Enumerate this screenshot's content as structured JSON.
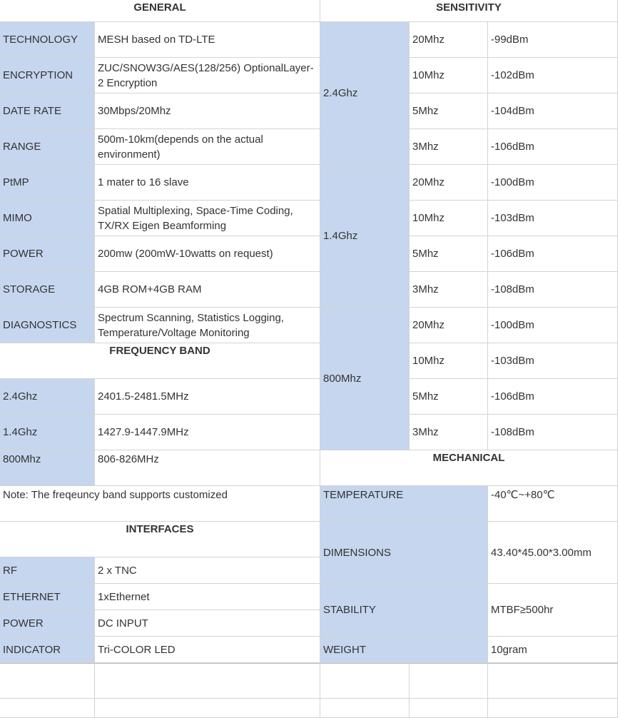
{
  "general": {
    "heading": "GENERAL",
    "rows": [
      {
        "label": "TECHNOLOGY",
        "value": "MESH based on TD-LTE"
      },
      {
        "label": "ENCRYPTION",
        "value": "ZUC/SNOW3G/AES(128/256) OptionalLayer-2 Encryption"
      },
      {
        "label": "DATE RATE",
        "value": "30Mbps/20Mhz"
      },
      {
        "label": "RANGE",
        "value": "500m-10km(depends on the actual environment)"
      },
      {
        "label": "PtMP",
        "value": "1 mater to 16 slave"
      },
      {
        "label": "MIMO",
        "value": "Spatial Multiplexing, Space-Time Coding, TX/RX Eigen Beamforming"
      },
      {
        "label": "POWER",
        "value": "200mw (200mW-10watts on request)"
      },
      {
        "label": "STORAGE",
        "value": "4GB ROM+4GB RAM"
      },
      {
        "label": "DIAGNOSTICS",
        "value": "Spectrum Scanning, Statistics Logging, Temperature/Voltage Monitoring"
      }
    ]
  },
  "frequency_band": {
    "heading": "FREQUENCY BAND",
    "rows": [
      {
        "label": "2.4Ghz",
        "value": "2401.5-2481.5MHz"
      },
      {
        "label": "1.4Ghz",
        "value": "1427.9-1447.9MHz"
      },
      {
        "label": "800Mhz",
        "value": "806-826MHz"
      }
    ],
    "note": "Note: The freqeuncy band supports customized"
  },
  "interfaces": {
    "heading": "INTERFACES",
    "rows": [
      {
        "label": "RF",
        "value": "2 x TNC"
      },
      {
        "label": "ETHERNET",
        "value": "1xEthernet"
      },
      {
        "label": "POWER",
        "value": "DC INPUT"
      },
      {
        "label": "INDICATOR",
        "value": "Tri-COLOR LED"
      }
    ]
  },
  "sensitivity": {
    "heading": "SENSITIVITY",
    "groups": [
      {
        "band": "2.4Ghz",
        "rows": [
          {
            "bw": "20Mhz",
            "val": "-99dBm"
          },
          {
            "bw": "10Mhz",
            "val": "-102dBm"
          },
          {
            "bw": "5Mhz",
            "val": "-104dBm"
          },
          {
            "bw": "3Mhz",
            "val": "-106dBm"
          }
        ]
      },
      {
        "band": "1.4Ghz",
        "rows": [
          {
            "bw": "20Mhz",
            "val": "-100dBm"
          },
          {
            "bw": "10Mhz",
            "val": "-103dBm"
          },
          {
            "bw": "5Mhz",
            "val": "-106dBm"
          },
          {
            "bw": "3Mhz",
            "val": "-108dBm"
          }
        ]
      },
      {
        "band": "800Mhz",
        "rows": [
          {
            "bw": "20Mhz",
            "val": "-100dBm"
          },
          {
            "bw": "10Mhz",
            "val": "-103dBm"
          },
          {
            "bw": "5Mhz",
            "val": "-106dBm"
          },
          {
            "bw": "3Mhz",
            "val": "-108dBm"
          }
        ]
      }
    ]
  },
  "mechanical": {
    "heading": "MECHANICAL",
    "rows": [
      {
        "label": "TEMPERATURE",
        "value": "-40℃~+80℃"
      },
      {
        "label": "DIMENSIONS",
        "value": "43.40*45.00*3.00mm"
      },
      {
        "label": "STABILITY",
        "value": "MTBF≥500hr"
      },
      {
        "label": "WEIGHT",
        "value": "10gram"
      }
    ]
  },
  "colors": {
    "label_fill": "#c6d6ee",
    "grid": "#d4d4d4"
  }
}
